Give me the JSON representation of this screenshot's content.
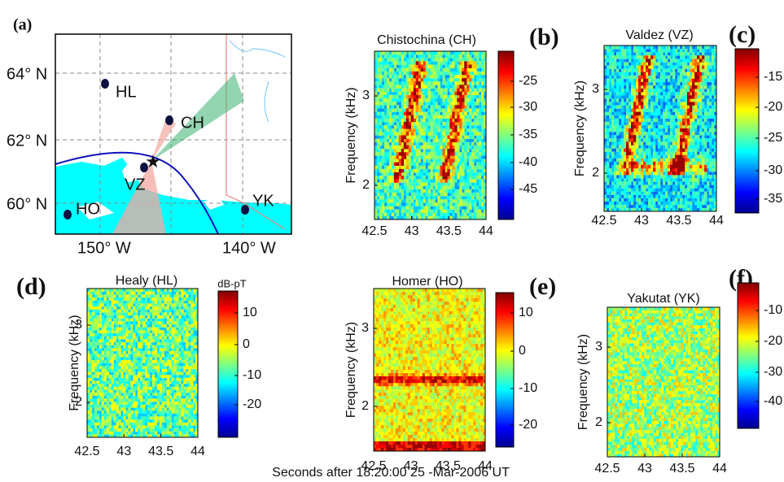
{
  "map": {
    "label": "(a)",
    "lat_labels": [
      "64° N",
      "62° N",
      "60° N"
    ],
    "lon_labels": [
      "150° W",
      "140° W"
    ],
    "stations": [
      "HL",
      "CH",
      "VZ",
      "HO",
      "YK"
    ]
  },
  "spectrograms": [
    {
      "label": "(b)",
      "title": "Chistochina (CH)",
      "y_label": "Frequency (kHz)",
      "y_ticks": [
        "3",
        "2"
      ],
      "x_ticks": [
        "42.5",
        "43",
        "43.5",
        "44"
      ],
      "colorbar_ticks": [
        "-25",
        "-30",
        "-35",
        "-40",
        "-45"
      ]
    },
    {
      "label": "(c)",
      "title": "Valdez (VZ)",
      "y_label": "Frequency (kHz)",
      "y_ticks": [
        "3",
        "2"
      ],
      "x_ticks": [
        "42.5",
        "43",
        "43.5",
        "44"
      ],
      "colorbar_ticks": [
        "-15",
        "-20",
        "-25",
        "-30",
        "-35"
      ]
    },
    {
      "label": "(d)",
      "title": "Healy (HL)",
      "y_label": "Frequency (kHz)",
      "y_ticks": [
        "3",
        "2"
      ],
      "x_ticks": [
        "42.5",
        "43",
        "43.5",
        "44"
      ],
      "colorbar_ticks": [
        "10",
        "0",
        "-10",
        "-20"
      ],
      "colorbar_label": "dB-pT"
    },
    {
      "label": "(e)",
      "title": "Homer (HO)",
      "y_label": "Frequency (kHz)",
      "y_ticks": [
        "3",
        "2"
      ],
      "x_ticks": [
        "42.5",
        "43",
        "43.5",
        "44"
      ],
      "colorbar_ticks": [
        "10",
        "0",
        "-10",
        "-20"
      ]
    },
    {
      "label": "(f)",
      "title": "Yakutat (YK)",
      "y_label": "Frequency (kHz)",
      "y_ticks": [
        "3",
        "2"
      ],
      "x_ticks": [
        "42.5",
        "43",
        "43.5",
        "44"
      ],
      "colorbar_ticks": [
        "-10",
        "-20",
        "-30",
        "-40"
      ]
    }
  ],
  "caption": "Seconds after 18:20:00 25 -Mar-2006 UT"
}
